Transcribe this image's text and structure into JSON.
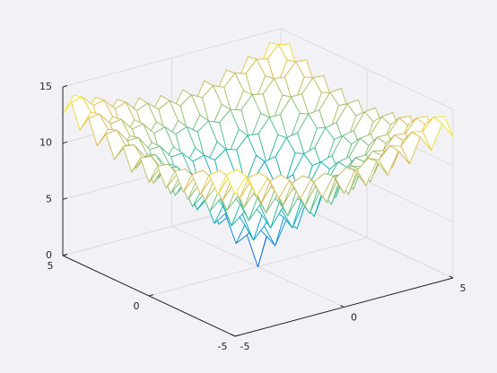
{
  "chart_data": {
    "type": "mesh",
    "x": [
      -5,
      -4.5,
      -4,
      -3.5,
      -3,
      -2.5,
      -2,
      -1.5,
      -1,
      -0.5,
      0,
      0.5,
      1,
      1.5,
      2,
      2.5,
      3,
      3.5,
      4,
      4.5,
      5
    ],
    "y": [
      -5,
      -4.5,
      -4,
      -3.5,
      -3,
      -2.5,
      -2,
      -1.5,
      -1,
      -0.5,
      0,
      0.5,
      1,
      1.5,
      2,
      2.5,
      3,
      3.5,
      4,
      4.5,
      5
    ],
    "z": [
      [
        12.6,
        14.0,
        11.9,
        13.3,
        11.2,
        12.6,
        10.7,
        12.2,
        10.3,
        11.9,
        10.1,
        11.9,
        10.3,
        12.2,
        10.7,
        12.6,
        11.2,
        13.3,
        11.9,
        14.0,
        12.6
      ],
      [
        14.0,
        14.2,
        13.2,
        13.4,
        12.4,
        12.7,
        11.7,
        12.1,
        11.3,
        11.8,
        11.1,
        11.8,
        11.3,
        12.1,
        11.7,
        12.7,
        12.4,
        13.4,
        13.2,
        14.2,
        14.0
      ],
      [
        11.9,
        13.2,
        11.0,
        12.3,
        10.1,
        11.5,
        9.4,
        10.8,
        8.8,
        10.4,
        8.6,
        10.4,
        8.8,
        10.8,
        9.4,
        11.5,
        10.1,
        12.3,
        11.0,
        13.2,
        11.9
      ],
      [
        13.3,
        13.4,
        12.3,
        12.4,
        11.3,
        11.5,
        10.4,
        10.7,
        9.8,
        10.2,
        9.5,
        10.2,
        9.8,
        10.7,
        10.4,
        11.5,
        11.3,
        12.4,
        12.3,
        13.4,
        13.3
      ],
      [
        11.2,
        12.4,
        10.1,
        11.3,
        9.0,
        10.2,
        8.0,
        9.3,
        7.2,
        8.7,
        6.9,
        8.7,
        7.2,
        9.3,
        8.0,
        10.2,
        9.0,
        11.3,
        10.1,
        12.4,
        11.2
      ],
      [
        12.6,
        12.7,
        11.5,
        11.5,
        10.2,
        10.2,
        9.0,
        9.1,
        8.1,
        8.4,
        7.7,
        8.4,
        8.1,
        9.1,
        9.0,
        10.2,
        10.2,
        11.5,
        11.5,
        12.7,
        12.6
      ],
      [
        10.7,
        11.7,
        9.4,
        10.4,
        8.0,
        9.0,
        6.6,
        7.7,
        5.4,
        6.8,
        4.9,
        6.8,
        5.4,
        7.7,
        6.6,
        9.0,
        8.0,
        10.4,
        9.4,
        11.7,
        10.7
      ],
      [
        12.2,
        12.1,
        10.8,
        10.7,
        9.3,
        9.1,
        7.7,
        7.5,
        6.2,
        6.4,
        5.5,
        6.4,
        6.2,
        7.5,
        7.7,
        9.1,
        9.3,
        10.7,
        10.8,
        12.1,
        12.2
      ],
      [
        10.3,
        11.3,
        8.8,
        9.8,
        7.2,
        8.1,
        5.4,
        6.2,
        3.6,
        4.6,
        2.6,
        4.6,
        3.6,
        6.2,
        5.4,
        8.1,
        7.2,
        9.8,
        8.8,
        11.3,
        10.3
      ],
      [
        11.9,
        11.8,
        10.4,
        10.2,
        8.7,
        8.4,
        6.8,
        6.4,
        4.6,
        4.3,
        3.1,
        4.3,
        4.6,
        6.4,
        6.8,
        8.4,
        8.7,
        10.2,
        10.4,
        11.8,
        11.9
      ],
      [
        10.1,
        11.1,
        8.6,
        9.5,
        6.9,
        7.7,
        4.9,
        5.5,
        2.6,
        3.1,
        0,
        3.1,
        2.6,
        5.5,
        4.9,
        7.7,
        6.9,
        9.5,
        8.6,
        11.1,
        10.1
      ],
      [
        11.9,
        11.8,
        10.4,
        10.2,
        8.7,
        8.4,
        6.8,
        6.4,
        4.6,
        4.3,
        3.1,
        4.3,
        4.6,
        6.4,
        6.8,
        8.4,
        8.7,
        10.2,
        10.4,
        11.8,
        11.9
      ],
      [
        10.3,
        11.3,
        8.8,
        9.8,
        7.2,
        8.1,
        5.4,
        6.2,
        3.6,
        4.6,
        2.6,
        4.6,
        3.6,
        6.2,
        5.4,
        8.1,
        7.2,
        9.8,
        8.8,
        11.3,
        10.3
      ],
      [
        12.2,
        12.1,
        10.8,
        10.7,
        9.3,
        9.1,
        7.7,
        7.5,
        6.2,
        6.4,
        5.5,
        6.4,
        6.2,
        7.5,
        7.7,
        9.1,
        9.3,
        10.7,
        10.8,
        12.1,
        12.2
      ],
      [
        10.7,
        11.7,
        9.4,
        10.4,
        8.0,
        9.0,
        6.6,
        7.7,
        5.4,
        6.8,
        4.9,
        6.8,
        5.4,
        7.7,
        6.6,
        9.0,
        8.0,
        10.4,
        9.4,
        11.7,
        10.7
      ],
      [
        12.6,
        12.7,
        11.5,
        11.5,
        10.2,
        10.2,
        9.0,
        9.1,
        8.1,
        8.4,
        7.7,
        8.4,
        8.1,
        9.1,
        9.0,
        10.2,
        10.2,
        11.5,
        11.5,
        12.7,
        12.6
      ],
      [
        11.2,
        12.4,
        10.1,
        11.3,
        9.0,
        10.2,
        8.0,
        9.3,
        7.2,
        8.7,
        6.9,
        8.7,
        7.2,
        9.3,
        8.0,
        10.2,
        9.0,
        11.3,
        10.1,
        12.4,
        11.2
      ],
      [
        13.3,
        13.4,
        12.3,
        12.4,
        11.3,
        11.5,
        10.4,
        10.7,
        9.8,
        10.2,
        9.5,
        10.2,
        9.8,
        10.7,
        10.4,
        11.5,
        11.3,
        12.4,
        12.3,
        13.4,
        13.3
      ],
      [
        11.9,
        13.2,
        11.0,
        12.3,
        10.1,
        11.5,
        9.4,
        10.8,
        8.8,
        10.4,
        8.6,
        10.4,
        8.8,
        10.8,
        9.4,
        11.5,
        10.1,
        12.3,
        11.0,
        13.2,
        11.9
      ],
      [
        14.0,
        14.2,
        13.2,
        13.4,
        12.4,
        12.7,
        11.7,
        12.1,
        11.3,
        11.8,
        11.1,
        11.8,
        11.3,
        12.1,
        11.7,
        12.7,
        12.4,
        13.4,
        13.2,
        14.2,
        14.0
      ],
      [
        12.6,
        14.0,
        11.9,
        13.3,
        11.2,
        12.6,
        10.7,
        12.2,
        10.3,
        11.9,
        10.1,
        11.9,
        10.3,
        12.2,
        10.7,
        12.6,
        11.2,
        13.3,
        11.9,
        14.0,
        12.6
      ]
    ],
    "xlim": [
      -5,
      5
    ],
    "ylim": [
      -5,
      5
    ],
    "zlim": [
      0,
      15
    ],
    "xticks": [
      -5,
      0,
      5
    ],
    "yticks": [
      -5,
      0,
      5
    ],
    "zticks": [
      0,
      5,
      10,
      15
    ],
    "grid": true,
    "colormap": "parula"
  }
}
